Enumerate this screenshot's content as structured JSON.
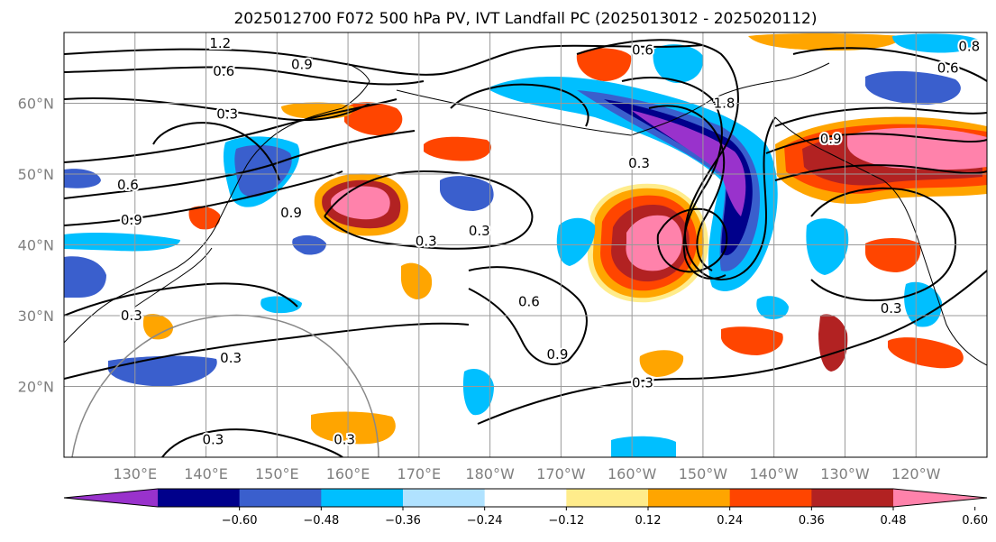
{
  "title": "2025012700 F072 500 hPa PV, IVT Landfall PC (2025013012 - 2025020112)",
  "map": {
    "lat_labels": [
      {
        "text": "60°N",
        "lat": 60
      },
      {
        "text": "50°N",
        "lat": 50
      },
      {
        "text": "40°N",
        "lat": 40
      },
      {
        "text": "30°N",
        "lat": 30
      },
      {
        "text": "20°N",
        "lat": 20
      }
    ],
    "lon_labels": [
      {
        "text": "130°E",
        "lon": 130
      },
      {
        "text": "140°E",
        "lon": 140
      },
      {
        "text": "150°E",
        "lon": 150
      },
      {
        "text": "160°E",
        "lon": 160
      },
      {
        "text": "170°E",
        "lon": 170
      },
      {
        "text": "180°W",
        "lon": 180
      },
      {
        "text": "170°W",
        "lon": 190
      },
      {
        "text": "160°W",
        "lon": 200
      },
      {
        "text": "150°W",
        "lon": 210
      },
      {
        "text": "140°W",
        "lon": 220
      },
      {
        "text": "130°W",
        "lon": 230
      },
      {
        "text": "120°W",
        "lon": 240
      }
    ],
    "extent": {
      "lon_min": 120,
      "lon_max": 250,
      "lat_min": 10,
      "lat_max": 70
    },
    "grid": true
  },
  "contour_labels": [
    {
      "text": "1.2",
      "lon": 142.0,
      "lat": 68.5
    },
    {
      "text": "0.9",
      "lon": 153.5,
      "lat": 65.5
    },
    {
      "text": "0.6",
      "lon": 142.5,
      "lat": 64.5
    },
    {
      "text": "0.6",
      "lon": 201.5,
      "lat": 67.5
    },
    {
      "text": "0.8",
      "lon": 247.5,
      "lat": 68.0
    },
    {
      "text": "0.6",
      "lon": 244.5,
      "lat": 65.0
    },
    {
      "text": "0.3",
      "lon": 143.0,
      "lat": 58.5
    },
    {
      "text": "1.8",
      "lon": 213.0,
      "lat": 60.0
    },
    {
      "text": "0.9",
      "lon": 228.0,
      "lat": 55.0
    },
    {
      "text": "0.3",
      "lon": 201.0,
      "lat": 51.5
    },
    {
      "text": "0.6",
      "lon": 129.0,
      "lat": 48.5
    },
    {
      "text": "0.9",
      "lon": 129.5,
      "lat": 43.5
    },
    {
      "text": "0.9",
      "lon": 152.0,
      "lat": 44.5
    },
    {
      "text": "0.3",
      "lon": 171.0,
      "lat": 40.5
    },
    {
      "text": "0.3",
      "lon": 178.5,
      "lat": 42.0
    },
    {
      "text": "0.6",
      "lon": 185.5,
      "lat": 32.0
    },
    {
      "text": "0.3",
      "lon": 129.5,
      "lat": 30.0
    },
    {
      "text": "0.9",
      "lon": 189.5,
      "lat": 24.5
    },
    {
      "text": "0.3",
      "lon": 236.5,
      "lat": 31.0
    },
    {
      "text": "0.3",
      "lon": 143.5,
      "lat": 24.0
    },
    {
      "text": "0.3",
      "lon": 201.5,
      "lat": 20.5
    },
    {
      "text": "0.3",
      "lon": 141.0,
      "lat": 12.5
    },
    {
      "text": "0.3",
      "lon": 159.5,
      "lat": 12.5
    }
  ],
  "colorbar": {
    "levels": [
      -0.72,
      -0.6,
      -0.48,
      -0.36,
      -0.24,
      -0.12,
      0.12,
      0.24,
      0.36,
      0.48,
      0.6,
      0.72
    ],
    "colors": [
      "#9932cc",
      "#00008b",
      "#3a5fcd",
      "#00bfff",
      "#b0e2ff",
      "#ffffff",
      "#ffec8b",
      "#ffa500",
      "#ff4500",
      "#b22222",
      "#ff82ab"
    ],
    "tick_labels": [
      "−0.60",
      "−0.48",
      "−0.36",
      "−0.24",
      "−0.12",
      "0.12",
      "0.24",
      "0.36",
      "0.48",
      "0.60"
    ],
    "extend": "both"
  }
}
